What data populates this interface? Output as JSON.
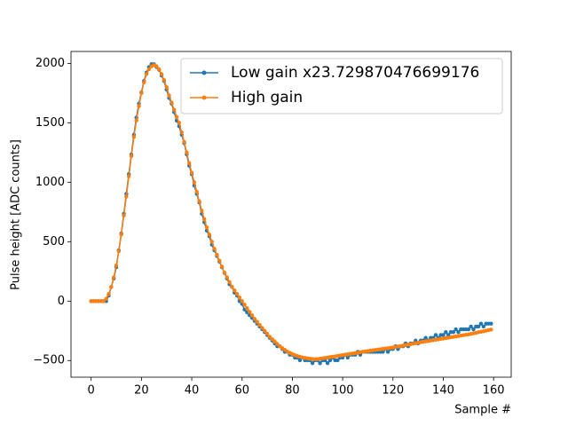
{
  "chart_data": {
    "type": "line",
    "x_label": "Sample #",
    "y_label": "Pulse height [ADC counts]",
    "xlim": [
      -8,
      167
    ],
    "ylim": [
      -640,
      2100
    ],
    "xticks": [
      0,
      20,
      40,
      60,
      80,
      100,
      120,
      140,
      160
    ],
    "yticks": [
      {
        "value": -500,
        "label": "−500"
      },
      0,
      500,
      1000,
      1500,
      2000
    ],
    "legend": "upper right",
    "grid": false,
    "x": [
      0,
      1,
      2,
      3,
      4,
      5,
      6,
      7,
      8,
      9,
      10,
      11,
      12,
      13,
      14,
      15,
      16,
      17,
      18,
      19,
      20,
      21,
      22,
      23,
      24,
      25,
      26,
      27,
      28,
      29,
      30,
      31,
      32,
      33,
      34,
      35,
      36,
      37,
      38,
      39,
      40,
      41,
      42,
      43,
      44,
      45,
      46,
      47,
      48,
      49,
      50,
      51,
      52,
      53,
      54,
      55,
      56,
      57,
      58,
      59,
      60,
      61,
      62,
      63,
      64,
      65,
      66,
      67,
      68,
      69,
      70,
      71,
      72,
      73,
      74,
      75,
      76,
      77,
      78,
      79,
      80,
      81,
      82,
      83,
      84,
      85,
      86,
      87,
      88,
      89,
      90,
      91,
      92,
      93,
      94,
      95,
      96,
      97,
      98,
      99,
      100,
      101,
      102,
      103,
      104,
      105,
      106,
      107,
      108,
      109,
      110,
      111,
      112,
      113,
      114,
      115,
      116,
      117,
      118,
      119,
      120,
      121,
      122,
      123,
      124,
      125,
      126,
      127,
      128,
      129,
      130,
      131,
      132,
      133,
      134,
      135,
      136,
      137,
      138,
      139,
      140,
      141,
      142,
      143,
      144,
      145,
      146,
      147,
      148,
      149,
      150,
      151,
      152,
      153,
      154,
      155,
      156,
      157,
      158,
      159
    ],
    "series": [
      {
        "name": "Low gain x23.729870476699176",
        "color": "#1f77b4",
        "values": [
          0,
          0,
          0,
          0,
          0,
          0,
          0,
          47,
          119,
          190,
          285,
          427,
          569,
          735,
          902,
          1068,
          1234,
          1400,
          1543,
          1661,
          1756,
          1851,
          1922,
          1969,
          1993,
          1993,
          1969,
          1946,
          1898,
          1851,
          1780,
          1709,
          1661,
          1590,
          1519,
          1471,
          1400,
          1329,
          1234,
          1139,
          1068,
          973,
          902,
          830,
          735,
          664,
          593,
          546,
          475,
          427,
          380,
          332,
          285,
          237,
          190,
          142,
          119,
          71,
          47,
          0,
          -24,
          -71,
          -95,
          -119,
          -142,
          -166,
          -190,
          -214,
          -237,
          -261,
          -285,
          -309,
          -332,
          -356,
          -380,
          -380,
          -403,
          -427,
          -427,
          -451,
          -451,
          -475,
          -475,
          -498,
          -475,
          -498,
          -498,
          -498,
          -522,
          -498,
          -498,
          -522,
          -498,
          -498,
          -522,
          -498,
          -475,
          -498,
          -498,
          -475,
          -475,
          -451,
          -475,
          -451,
          -451,
          -451,
          -427,
          -451,
          -427,
          -427,
          -427,
          -427,
          -427,
          -427,
          -427,
          -427,
          -427,
          -403,
          -427,
          -403,
          -403,
          -380,
          -403,
          -380,
          -380,
          -356,
          -380,
          -356,
          -356,
          -332,
          -356,
          -332,
          -332,
          -309,
          -332,
          -309,
          -309,
          -285,
          -309,
          -285,
          -285,
          -261,
          -285,
          -261,
          -261,
          -237,
          -261,
          -237,
          -237,
          -237,
          -237,
          -214,
          -237,
          -214,
          -214,
          -190,
          -214,
          -190,
          -190,
          -190
        ]
      },
      {
        "name": "High gain",
        "color": "#ff7f0e",
        "values": [
          0,
          0,
          0,
          0,
          0,
          0,
          20,
          60,
          120,
          200,
          300,
          420,
          560,
          720,
          880,
          1050,
          1220,
          1380,
          1520,
          1640,
          1750,
          1840,
          1910,
          1950,
          1975,
          1985,
          1975,
          1950,
          1910,
          1860,
          1800,
          1730,
          1670,
          1610,
          1550,
          1500,
          1420,
          1340,
          1250,
          1160,
          1080,
          1000,
          920,
          840,
          760,
          690,
          620,
          560,
          500,
          440,
          390,
          340,
          290,
          240,
          200,
          160,
          120,
          90,
          60,
          30,
          0,
          -30,
          -60,
          -90,
          -120,
          -150,
          -175,
          -200,
          -225,
          -250,
          -275,
          -300,
          -320,
          -340,
          -360,
          -380,
          -395,
          -410,
          -425,
          -435,
          -445,
          -455,
          -462,
          -468,
          -474,
          -478,
          -482,
          -485,
          -487,
          -488,
          -488,
          -485,
          -481,
          -478,
          -475,
          -471,
          -468,
          -465,
          -461,
          -458,
          -455,
          -451,
          -448,
          -444,
          -441,
          -437,
          -434,
          -430,
          -427,
          -423,
          -420,
          -417,
          -414,
          -411,
          -408,
          -405,
          -402,
          -399,
          -396,
          -393,
          -390,
          -386,
          -382,
          -378,
          -374,
          -370,
          -366,
          -362,
          -358,
          -354,
          -350,
          -346,
          -343,
          -339,
          -336,
          -332,
          -329,
          -325,
          -322,
          -318,
          -315,
          -311,
          -308,
          -304,
          -301,
          -297,
          -294,
          -290,
          -287,
          -283,
          -280,
          -276,
          -271,
          -267,
          -262,
          -258,
          -253,
          -249,
          -244,
          -240
        ]
      }
    ]
  }
}
